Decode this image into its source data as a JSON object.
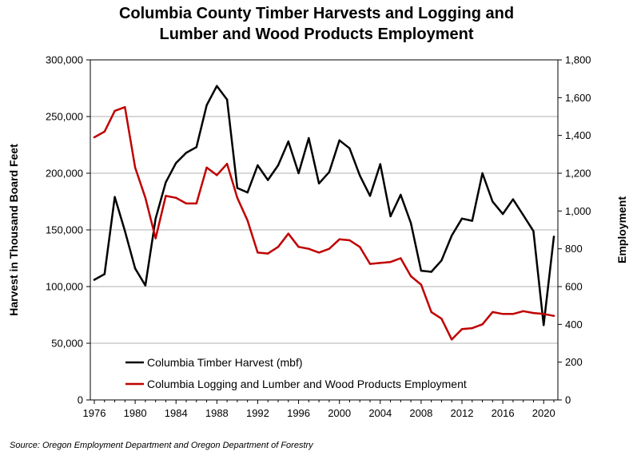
{
  "chart_data": {
    "type": "line",
    "title_line1": "Columbia County Timber Harvests and Logging and",
    "title_line2": "Lumber and Wood Products Employment",
    "xlabel": "",
    "ylabel_left": "Harvest in Thousand Board Feet",
    "ylabel_right": "Employment",
    "xlim": [
      1976,
      2021
    ],
    "ylim_left": [
      0,
      300000
    ],
    "ylim_right": [
      0,
      1800
    ],
    "grid": true,
    "legend_position": "bottom-left",
    "x": [
      1976,
      1977,
      1978,
      1979,
      1980,
      1981,
      1982,
      1983,
      1984,
      1985,
      1986,
      1987,
      1988,
      1989,
      1990,
      1991,
      1992,
      1993,
      1994,
      1995,
      1996,
      1997,
      1998,
      1999,
      2000,
      2001,
      2002,
      2003,
      2004,
      2005,
      2006,
      2007,
      2008,
      2009,
      2010,
      2011,
      2012,
      2013,
      2014,
      2015,
      2016,
      2017,
      2018,
      2019,
      2020,
      2021
    ],
    "x_tick_labels": [
      "1976",
      "1980",
      "1984",
      "1988",
      "1992",
      "1996",
      "2000",
      "2004",
      "2008",
      "2012",
      "2016",
      "2020"
    ],
    "y_left_tick_labels": [
      "0",
      "50,000",
      "100,000",
      "150,000",
      "200,000",
      "250,000",
      "300,000"
    ],
    "y_right_tick_labels": [
      "0",
      "200",
      "400",
      "600",
      "800",
      "1,000",
      "1,200",
      "1,400",
      "1,600",
      "1,800"
    ],
    "series": [
      {
        "name": "Columbia Timber Harvest (mbf)",
        "color": "#000000",
        "axis": "left",
        "values": [
          106000,
          111000,
          179000,
          149000,
          116000,
          101000,
          160000,
          192000,
          209000,
          218000,
          223000,
          260000,
          277000,
          265000,
          187000,
          183000,
          207000,
          194000,
          207000,
          228000,
          200000,
          231000,
          191000,
          201000,
          229000,
          222000,
          198000,
          180000,
          208000,
          162000,
          181000,
          156000,
          114000,
          113000,
          123000,
          145000,
          160000,
          158000,
          200000,
          175000,
          164000,
          177000,
          163000,
          149000,
          66000,
          144000
        ]
      },
      {
        "name": "Columbia Logging and Lumber and Wood Products Employment",
        "color": "#c00000",
        "axis": "right",
        "values": [
          1390,
          1420,
          1530,
          1550,
          1230,
          1070,
          855,
          1080,
          1070,
          1040,
          1040,
          1230,
          1190,
          1250,
          1070,
          950,
          780,
          775,
          810,
          880,
          810,
          800,
          780,
          800,
          850,
          845,
          810,
          720,
          725,
          730,
          750,
          655,
          610,
          465,
          430,
          320,
          375,
          380,
          400,
          465,
          455,
          455,
          470,
          460,
          455,
          445
        ]
      }
    ]
  },
  "source": "Source: Oregon Employment Department and Oregon Department of Forestry"
}
